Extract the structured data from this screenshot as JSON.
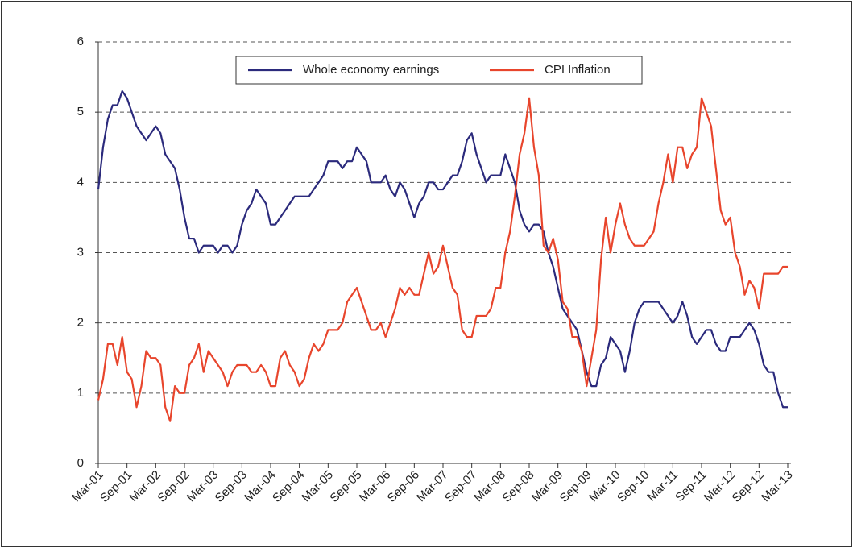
{
  "chart_data": {
    "type": "line",
    "categories": [
      "Mar-01",
      null,
      null,
      null,
      null,
      null,
      "Sep-01",
      null,
      null,
      null,
      null,
      null,
      "Mar-02",
      null,
      null,
      null,
      null,
      null,
      "Sep-02",
      null,
      null,
      null,
      null,
      null,
      "Mar-03",
      null,
      null,
      null,
      null,
      null,
      "Sep-03",
      null,
      null,
      null,
      null,
      null,
      "Mar-04",
      null,
      null,
      null,
      null,
      null,
      "Sep-04",
      null,
      null,
      null,
      null,
      null,
      "Mar-05",
      null,
      null,
      null,
      null,
      null,
      "Sep-05",
      null,
      null,
      null,
      null,
      null,
      "Mar-06",
      null,
      null,
      null,
      null,
      null,
      "Sep-06",
      null,
      null,
      null,
      null,
      null,
      "Mar-07",
      null,
      null,
      null,
      null,
      null,
      "Sep-07",
      null,
      null,
      null,
      null,
      null,
      "Mar-08",
      null,
      null,
      null,
      null,
      null,
      "Sep-08",
      null,
      null,
      null,
      null,
      null,
      "Mar-09",
      null,
      null,
      null,
      null,
      null,
      "Sep-09",
      null,
      null,
      null,
      null,
      null,
      "Mar-10",
      null,
      null,
      null,
      null,
      null,
      "Sep-10",
      null,
      null,
      null,
      null,
      null,
      "Mar-11",
      null,
      null,
      null,
      null,
      null,
      "Sep-11",
      null,
      null,
      null,
      null,
      null,
      "Mar-12",
      null,
      null,
      null,
      null,
      null,
      "Sep-12",
      null,
      null,
      null,
      null,
      null,
      "Mar-13"
    ],
    "series": [
      {
        "name": "Whole economy earnings",
        "color": "#2b2a7c",
        "values": [
          3.9,
          4.5,
          4.9,
          5.1,
          5.1,
          5.3,
          5.2,
          5.0,
          4.8,
          4.7,
          4.6,
          4.7,
          4.8,
          4.7,
          4.4,
          4.3,
          4.2,
          3.9,
          3.5,
          3.2,
          3.2,
          3.0,
          3.1,
          3.1,
          3.1,
          3.0,
          3.1,
          3.1,
          3.0,
          3.1,
          3.4,
          3.6,
          3.7,
          3.9,
          3.8,
          3.7,
          3.4,
          3.4,
          3.5,
          3.6,
          3.7,
          3.8,
          3.8,
          3.8,
          3.8,
          3.9,
          4.0,
          4.1,
          4.3,
          4.3,
          4.3,
          4.2,
          4.3,
          4.3,
          4.5,
          4.4,
          4.3,
          4.0,
          4.0,
          4.0,
          4.1,
          3.9,
          3.8,
          4.0,
          3.9,
          3.7,
          3.5,
          3.7,
          3.8,
          4.0,
          4.0,
          3.9,
          3.9,
          4.0,
          4.1,
          4.1,
          4.3,
          4.6,
          4.7,
          4.4,
          4.2,
          4.0,
          4.1,
          4.1,
          4.1,
          4.4,
          4.2,
          4.0,
          3.6,
          3.4,
          3.3,
          3.4,
          3.4,
          3.3,
          3.0,
          2.8,
          2.5,
          2.2,
          2.1,
          2.0,
          1.9,
          1.6,
          1.3,
          1.1,
          1.1,
          1.4,
          1.5,
          1.8,
          1.7,
          1.6,
          1.3,
          1.6,
          2.0,
          2.2,
          2.3,
          2.3,
          2.3,
          2.3,
          2.2,
          2.1,
          2.0,
          2.1,
          2.3,
          2.1,
          1.8,
          1.7,
          1.8,
          1.9,
          1.9,
          1.7,
          1.6,
          1.6,
          1.8,
          1.8,
          1.8,
          1.9,
          2.0,
          1.9,
          1.7,
          1.4,
          1.3,
          1.3,
          1.0,
          0.8,
          0.8
        ]
      },
      {
        "name": "CPI Inflation",
        "color": "#e8452c",
        "values": [
          0.9,
          1.2,
          1.7,
          1.7,
          1.4,
          1.8,
          1.3,
          1.2,
          0.8,
          1.1,
          1.6,
          1.5,
          1.5,
          1.4,
          0.8,
          0.6,
          1.1,
          1.0,
          1.0,
          1.4,
          1.5,
          1.7,
          1.3,
          1.6,
          1.5,
          1.4,
          1.3,
          1.1,
          1.3,
          1.4,
          1.4,
          1.4,
          1.3,
          1.3,
          1.4,
          1.3,
          1.1,
          1.1,
          1.5,
          1.6,
          1.4,
          1.3,
          1.1,
          1.2,
          1.5,
          1.7,
          1.6,
          1.7,
          1.9,
          1.9,
          1.9,
          2.0,
          2.3,
          2.4,
          2.5,
          2.3,
          2.1,
          1.9,
          1.9,
          2.0,
          1.8,
          2.0,
          2.2,
          2.5,
          2.4,
          2.5,
          2.4,
          2.4,
          2.7,
          3.0,
          2.7,
          2.8,
          3.1,
          2.8,
          2.5,
          2.4,
          1.9,
          1.8,
          1.8,
          2.1,
          2.1,
          2.1,
          2.2,
          2.5,
          2.5,
          3.0,
          3.3,
          3.8,
          4.4,
          4.7,
          5.2,
          4.5,
          4.1,
          3.1,
          3.0,
          3.2,
          2.9,
          2.3,
          2.2,
          1.8,
          1.8,
          1.6,
          1.1,
          1.5,
          1.9,
          2.9,
          3.5,
          3.0,
          3.4,
          3.7,
          3.4,
          3.2,
          3.1,
          3.1,
          3.1,
          3.2,
          3.3,
          3.7,
          4.0,
          4.4,
          4.0,
          4.5,
          4.5,
          4.2,
          4.4,
          4.5,
          5.2,
          5.0,
          4.8,
          4.2,
          3.6,
          3.4,
          3.5,
          3.0,
          2.8,
          2.4,
          2.6,
          2.5,
          2.2,
          2.7,
          2.7,
          2.7,
          2.7,
          2.8,
          2.8
        ]
      }
    ],
    "ylim": [
      0,
      6
    ],
    "yticks": [
      0,
      1,
      2,
      3,
      4,
      5,
      6
    ],
    "grid": true,
    "legend": "top"
  }
}
